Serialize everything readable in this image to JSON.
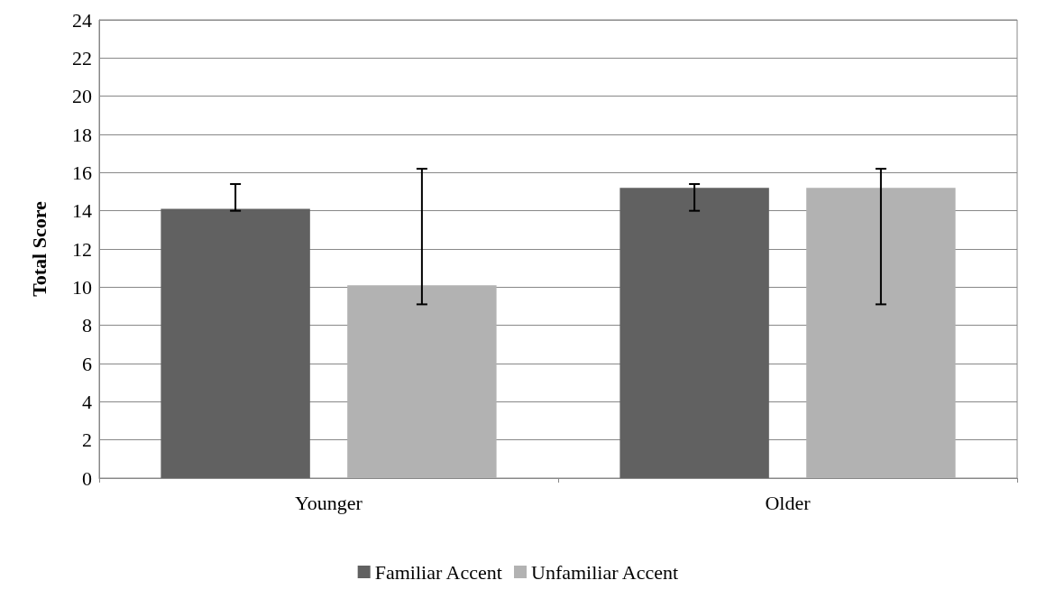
{
  "chart_data": {
    "type": "bar",
    "ylabel": "Total Score",
    "categories": [
      "Younger",
      "Older"
    ],
    "series": [
      {
        "name": "Familiar Accent",
        "color": "#616161",
        "values": [
          14.1,
          15.2
        ],
        "errors": [
          [
            14.0,
            15.4
          ],
          [
            14.0,
            15.4
          ]
        ]
      },
      {
        "name": "Unfamiliar Accent",
        "color": "#b2b2b2",
        "values": [
          10.1,
          15.2
        ],
        "errors": [
          [
            9.1,
            16.2
          ],
          [
            9.1,
            16.2
          ]
        ]
      }
    ],
    "ylim": [
      0,
      24
    ],
    "yticks": [
      0,
      2,
      4,
      6,
      8,
      10,
      12,
      14,
      16,
      18,
      20,
      22,
      24
    ],
    "grid": "y",
    "legend": "bottom"
  }
}
